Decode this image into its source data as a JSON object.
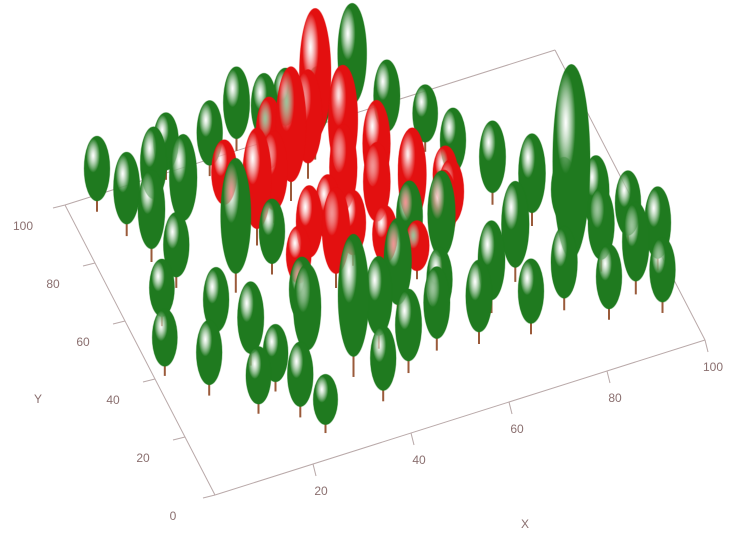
{
  "chart_data": {
    "type": "forest",
    "x_label": "X",
    "y_label": "Y",
    "xlim": [
      0,
      100
    ],
    "ylim": [
      0,
      100
    ],
    "xticks": [
      20,
      40,
      60,
      80,
      100
    ],
    "yticks": [
      0,
      20,
      40,
      60,
      80,
      100
    ],
    "series": [
      {
        "color": "#1f7a1f",
        "x": [
          5,
          8,
          10,
          12,
          6,
          14,
          18,
          20,
          22,
          25,
          15,
          28,
          30,
          35,
          38,
          42,
          45,
          48,
          52,
          55,
          60,
          65,
          70,
          72,
          78,
          81,
          85,
          88,
          92,
          95,
          90,
          85,
          80,
          75,
          70,
          68,
          62,
          58,
          50,
          45,
          40,
          35,
          28,
          20,
          15,
          18,
          22,
          2,
          8,
          30,
          95,
          98,
          60,
          55
        ],
        "y": [
          95,
          85,
          75,
          65,
          55,
          45,
          35,
          25,
          15,
          8,
          20,
          30,
          40,
          22,
          12,
          28,
          18,
          35,
          22,
          30,
          20,
          28,
          18,
          35,
          22,
          27,
          15,
          30,
          20,
          12,
          40,
          45,
          50,
          60,
          70,
          82,
          88,
          98,
          95,
          100,
          98,
          100,
          95,
          98,
          90,
          80,
          58,
          40,
          30,
          60,
          35,
          25,
          45,
          50
        ],
        "size": [
          9,
          10,
          11,
          9,
          8,
          9,
          10,
          8,
          9,
          7,
          8,
          12,
          9,
          17,
          9,
          11,
          10,
          12,
          10,
          9,
          10,
          11,
          9,
          12,
          10,
          27,
          9,
          10,
          11,
          9,
          10,
          9,
          11,
          10,
          9,
          8,
          10,
          14,
          9,
          8,
          9,
          10,
          9,
          8,
          10,
          12,
          16,
          8,
          9,
          9,
          9,
          10,
          12,
          10
        ]
      },
      {
        "color": "#e31010",
        "x": [
          30,
          35,
          40,
          45,
          50,
          55,
          60,
          65,
          58,
          52,
          47,
          42,
          37,
          33,
          40,
          45,
          50,
          55,
          62,
          48,
          38,
          27,
          53,
          66
        ],
        "y": [
          70,
          75,
          80,
          85,
          78,
          72,
          65,
          55,
          58,
          62,
          68,
          62,
          58,
          52,
          50,
          55,
          50,
          45,
          50,
          90,
          88,
          82,
          88,
          62
        ],
        "size": [
          14,
          11,
          16,
          13,
          15,
          12,
          10,
          9,
          13,
          11,
          12,
          9,
          10,
          8,
          12,
          9,
          8,
          7,
          10,
          18,
          10,
          9,
          11,
          8
        ]
      }
    ]
  }
}
